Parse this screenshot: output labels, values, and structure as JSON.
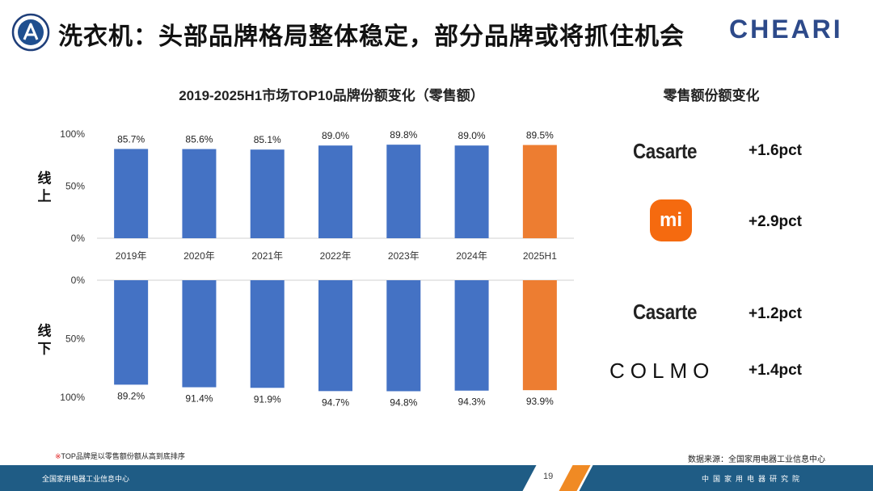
{
  "header": {
    "title": "洗衣机：头部品牌格局整体稳定，部分品牌或将抓住机会",
    "brand_logo_text": "CHEARI",
    "left_logo_icon": "institute-emblem-icon"
  },
  "chart_data": {
    "type": "bar",
    "title": "2019-2025H1市场TOP10品牌份额变化（零售额）",
    "categories": [
      "2019年",
      "2020年",
      "2021年",
      "2022年",
      "2023年",
      "2024年",
      "2025H1"
    ],
    "highlight_index": 6,
    "colors": {
      "normal": "#4472c4",
      "highlight": "#ed7d31"
    },
    "panels": [
      {
        "name": "线上",
        "label_lines": [
          "线",
          "上"
        ],
        "values": [
          85.7,
          85.6,
          85.1,
          89.0,
          89.8,
          89.0,
          89.5
        ],
        "value_labels": [
          "85.7%",
          "85.6%",
          "85.1%",
          "89.0%",
          "89.8%",
          "89.0%",
          "89.5%"
        ],
        "y_ticks": [
          "100%",
          "50%",
          "0%"
        ],
        "ylim": [
          0,
          100
        ],
        "direction": "up"
      },
      {
        "name": "线下",
        "label_lines": [
          "线",
          "下"
        ],
        "values": [
          89.2,
          91.4,
          91.9,
          94.7,
          94.8,
          94.3,
          93.9
        ],
        "value_labels": [
          "89.2%",
          "91.4%",
          "91.9%",
          "94.7%",
          "94.8%",
          "94.3%",
          "93.9%"
        ],
        "y_ticks": [
          "0%",
          "50%",
          "100%"
        ],
        "ylim": [
          0,
          100
        ],
        "direction": "down"
      }
    ]
  },
  "comparison": {
    "title": "零售额份额变化",
    "items": [
      {
        "brand": "Casarte",
        "logo": "casarte-wordmark",
        "value": "+1.6pct"
      },
      {
        "brand": "mi",
        "logo": "xiaomi-logo-icon",
        "value": "+2.9pct"
      },
      {
        "brand": "Casarte",
        "logo": "casarte-wordmark",
        "value": "+1.2pct"
      },
      {
        "brand": "COLMO",
        "logo": "colmo-wordmark",
        "value": "+1.4pct"
      }
    ]
  },
  "footnote": {
    "mark": "※",
    "text": "TOP品牌是以零售额份额从高到底排序"
  },
  "source": "数据来源：全国家用电器工业信息中心",
  "footer": {
    "left_text": "全国家用电器工业信息中心",
    "page_number": "19",
    "right_text": "中国家用电器研究院"
  }
}
